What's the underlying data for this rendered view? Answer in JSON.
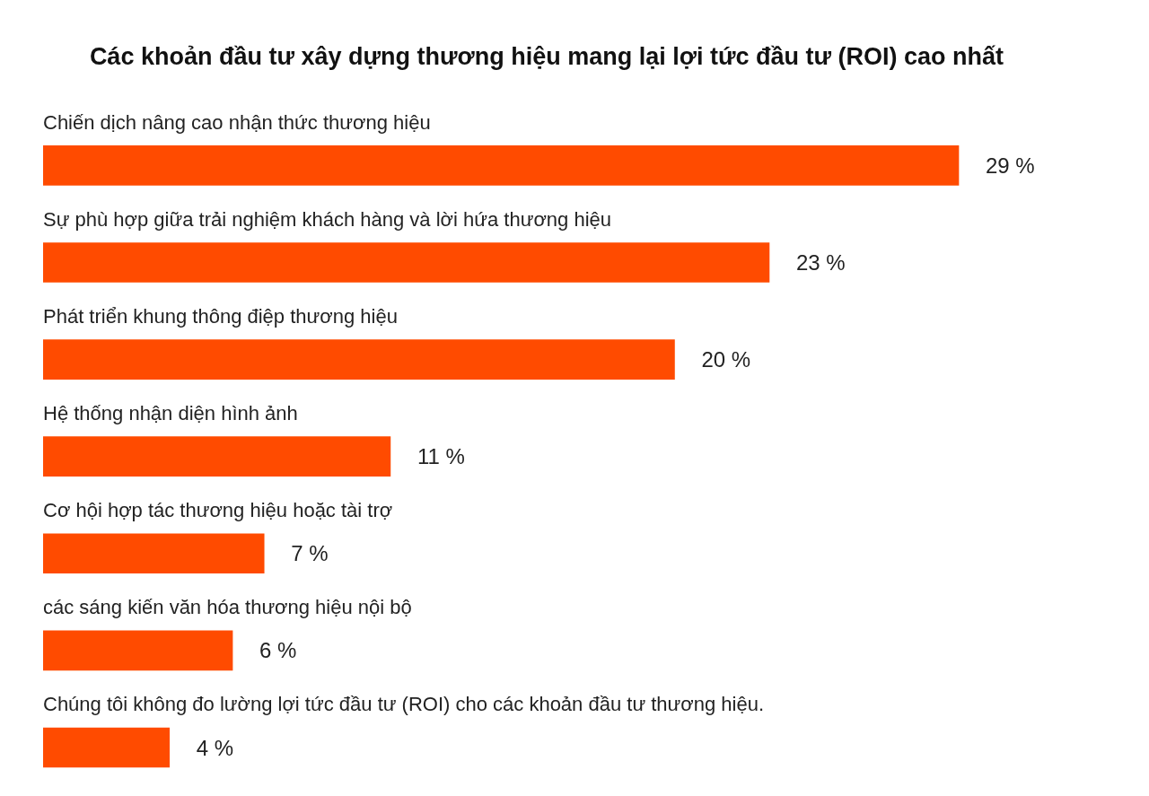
{
  "chart_data": {
    "type": "bar",
    "orientation": "horizontal",
    "title": "Các khoản đầu tư xây dựng thương hiệu mang lại lợi tức đầu tư (ROI) cao nhất",
    "categories": [
      "Chiến dịch nâng cao nhận thức thương hiệu",
      "Sự phù hợp giữa trải nghiệm khách hàng và lời hứa thương hiệu",
      "Phát triển khung thông điệp thương hiệu",
      "Hệ thống nhận diện hình ảnh",
      "Cơ hội hợp tác thương hiệu hoặc tài trợ",
      "các sáng kiến văn hóa thương hiệu nội bộ",
      "Chúng tôi không đo lường lợi tức đầu tư (ROI) cho các khoản đầu tư thương hiệu."
    ],
    "values": [
      29,
      23,
      20,
      11,
      7,
      6,
      4
    ],
    "value_labels": [
      "29 %",
      "23 %",
      "20 %",
      "11 %",
      "7 %",
      "6 %",
      "4 %"
    ],
    "color": "#ff4b00",
    "legend": false,
    "tick_labels": false
  }
}
